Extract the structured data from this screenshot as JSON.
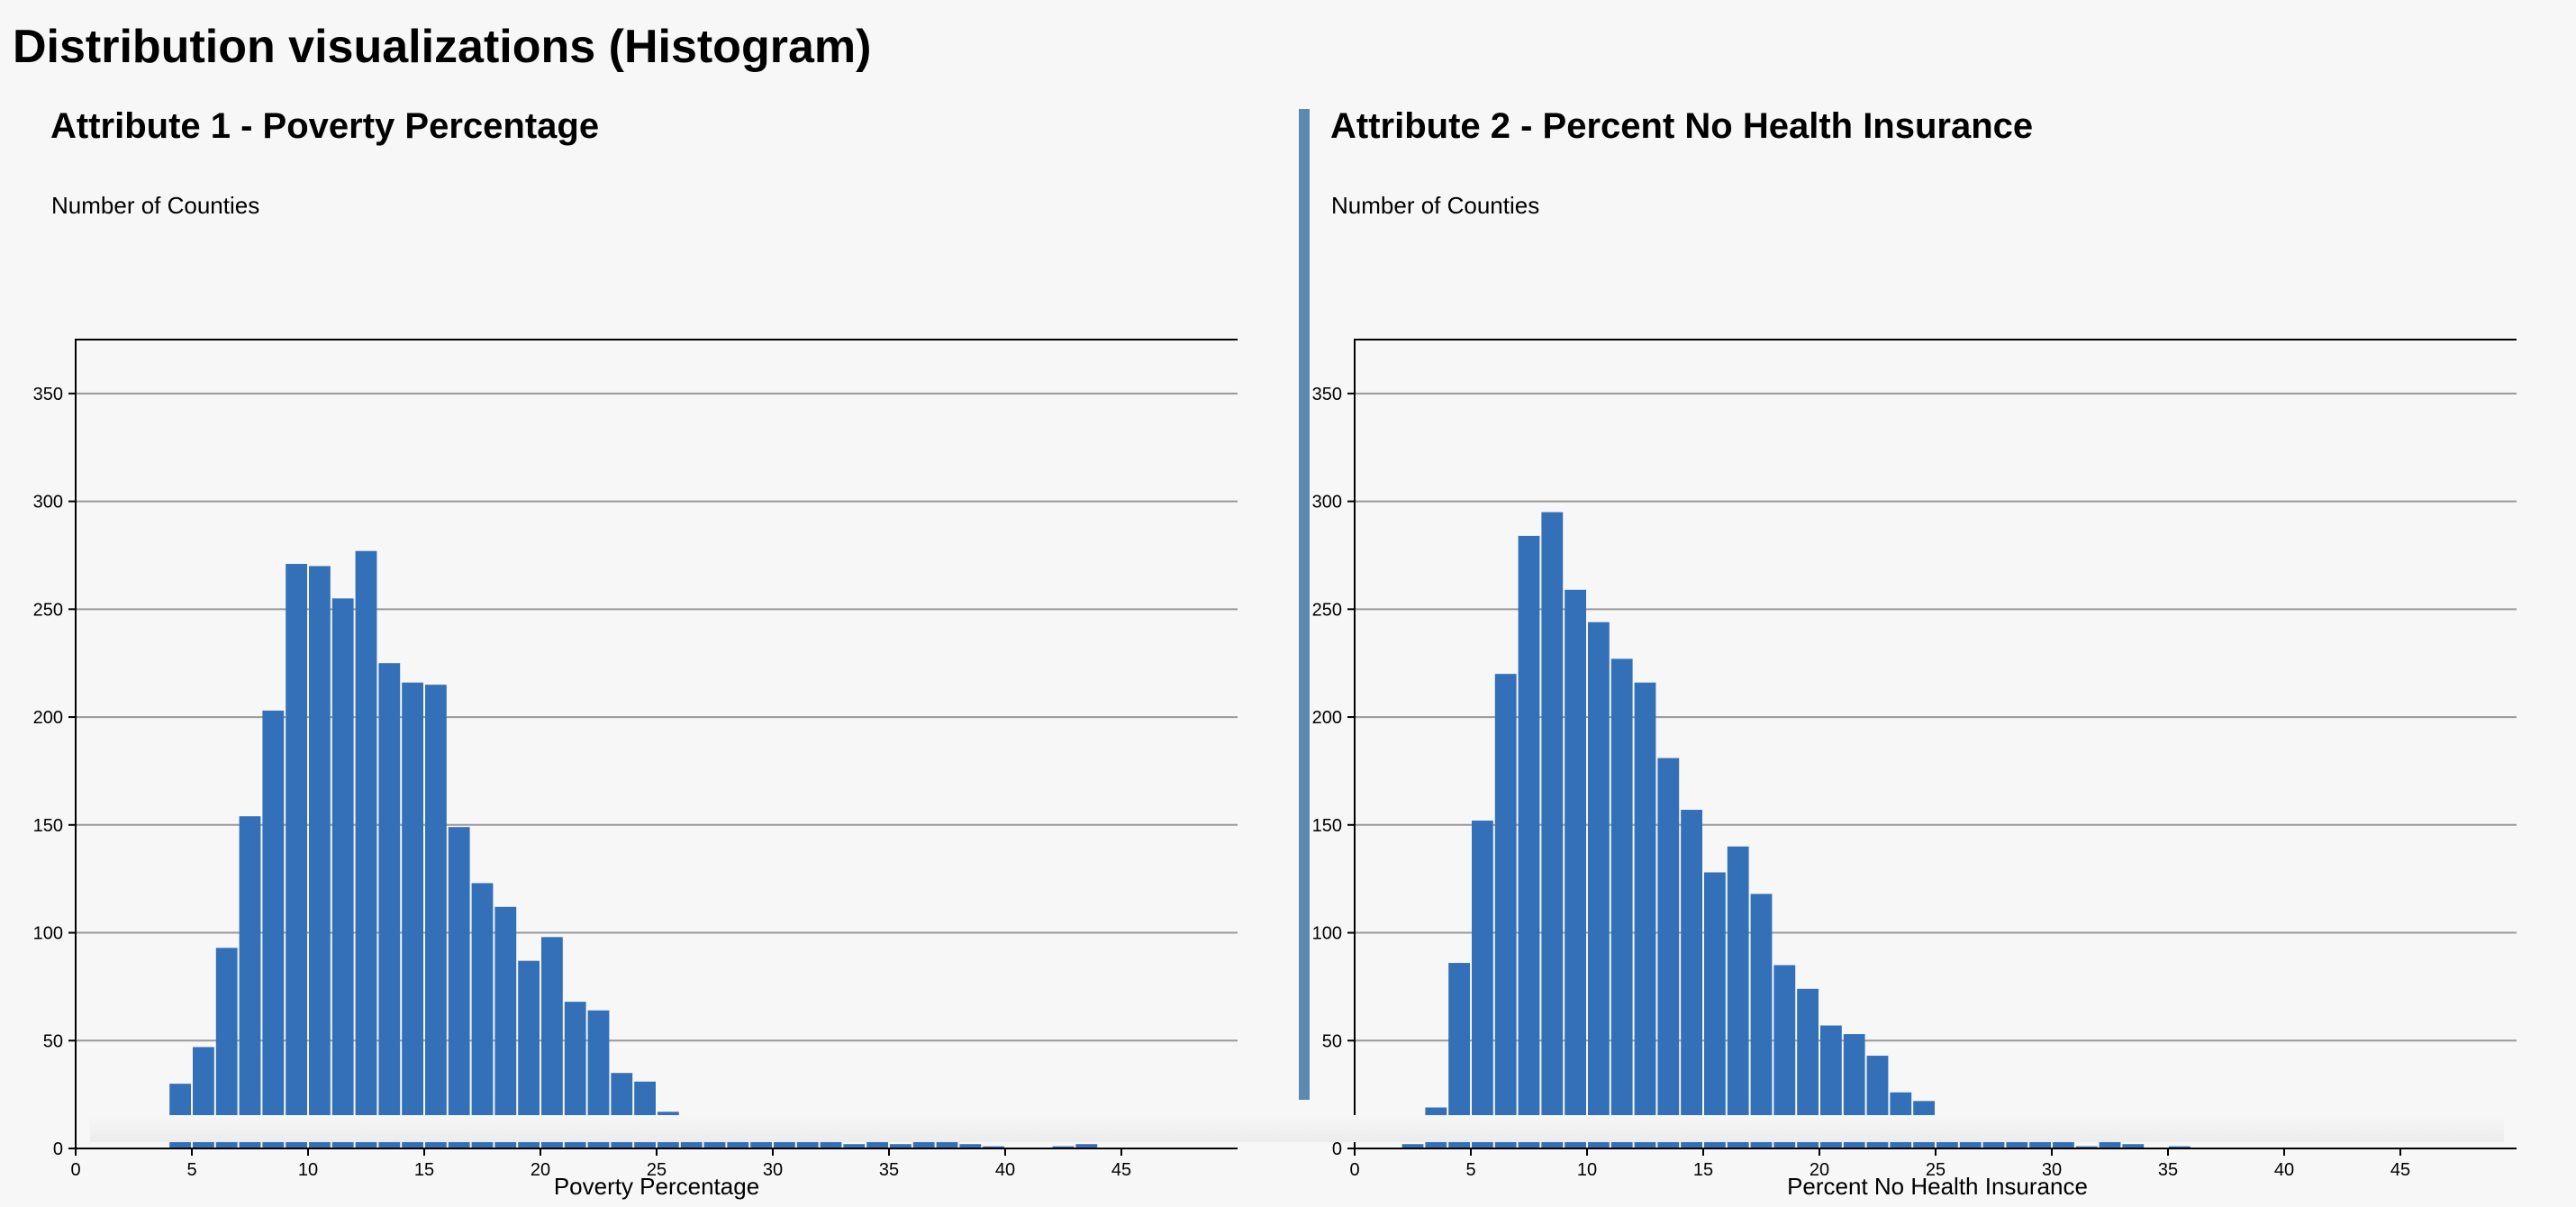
{
  "page": {
    "title": "Distribution visualizations (Histogram)"
  },
  "panels": [
    {
      "title": "Attribute 1 - Poverty Percentage",
      "ylabel": "Number of Counties",
      "xlabel": "Poverty Percentage"
    },
    {
      "title": "Attribute 2 - Percent No Health Insurance",
      "ylabel": "Number of Counties",
      "xlabel": "Percent No Health Insurance"
    }
  ],
  "colors": {
    "bar": "#3470b8",
    "divider": "#5b89b0",
    "grid": "#999999",
    "axis": "#000000"
  },
  "chart_data": [
    {
      "type": "bar",
      "title": "Attribute 1 - Poverty Percentage",
      "xlabel": "Poverty Percentage",
      "ylabel": "Number of Counties",
      "xlim": [
        0,
        50
      ],
      "ylim": [
        0,
        375
      ],
      "xticks": [
        0,
        5,
        10,
        15,
        20,
        25,
        30,
        35,
        40,
        45
      ],
      "yticks": [
        0,
        50,
        100,
        150,
        200,
        250,
        300,
        350
      ],
      "grid": true,
      "bin_width": 1,
      "bin_start": 4,
      "values": [
        30,
        47,
        93,
        154,
        203,
        271,
        270,
        255,
        277,
        225,
        216,
        215,
        149,
        123,
        112,
        87,
        98,
        68,
        64,
        35,
        31,
        17,
        12,
        14,
        15,
        7,
        9,
        7,
        5,
        2,
        4,
        2,
        3,
        4,
        2,
        1,
        0,
        0,
        1,
        2,
        0,
        0,
        0,
        0,
        0,
        0
      ]
    },
    {
      "type": "bar",
      "title": "Attribute 2 - Percent No Health Insurance",
      "xlabel": "Percent No Health Insurance",
      "ylabel": "Number of Counties",
      "xlim": [
        0,
        50
      ],
      "ylim": [
        0,
        375
      ],
      "xticks": [
        0,
        5,
        10,
        15,
        20,
        25,
        30,
        35,
        40,
        45
      ],
      "yticks": [
        0,
        50,
        100,
        150,
        200,
        250,
        300,
        350
      ],
      "grid": true,
      "bin_width": 1,
      "bin_start": 2,
      "values": [
        2,
        19,
        86,
        152,
        220,
        284,
        295,
        259,
        244,
        227,
        216,
        181,
        157,
        128,
        140,
        118,
        85,
        74,
        57,
        53,
        43,
        26,
        22,
        11,
        14,
        4,
        6,
        6,
        4,
        1,
        3,
        2,
        0,
        1,
        0,
        0,
        0,
        0,
        0,
        0,
        0,
        0,
        0,
        0,
        0,
        0,
        0,
        0
      ]
    }
  ]
}
